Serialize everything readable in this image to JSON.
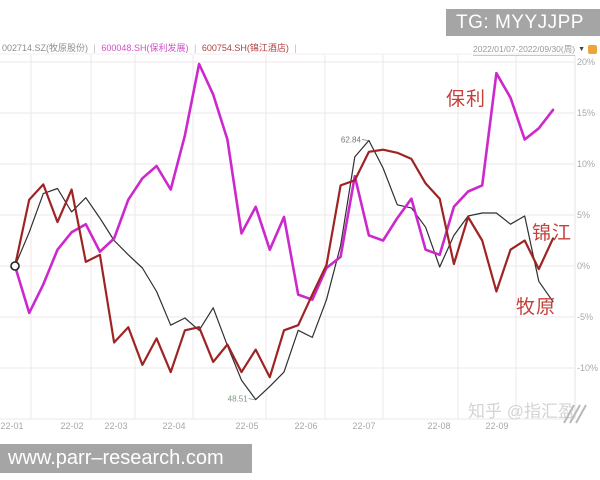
{
  "banners": {
    "tg": "TG: MYYJJPP",
    "website": "www.parr–research.com"
  },
  "legend": {
    "separator": "|",
    "items": [
      {
        "label": "002714.SZ(牧原股份)",
        "color": "#8d8d8d"
      },
      {
        "label": "600048.SH(保利发展)",
        "color": "#d24fc8"
      },
      {
        "label": "600754.SH(锦江酒店)",
        "color": "#b04040"
      }
    ]
  },
  "toolbar": {
    "date_range": "2022/01/07-2022/09/30(周)",
    "dropdown_icon": "▼"
  },
  "watermarks": {
    "zhihu": "知乎 @指汇盈"
  },
  "chart_data": {
    "type": "line",
    "title": "",
    "frequency": "weekly",
    "x_labels": [
      "22-01",
      "22-02",
      "22-03",
      "22-04",
      "22-05",
      "22-06",
      "22-07",
      "22-08",
      "22-09"
    ],
    "y_tick_labels": [
      "20%",
      "15%",
      "10%",
      "5%",
      "0%",
      "-5%",
      "-10%"
    ],
    "y_range": [
      -15,
      21
    ],
    "grid": true,
    "legend_position": "top-left",
    "series": [
      {
        "name": "600048.SH(保利发展)",
        "short": "保利",
        "color": "#cc29cc",
        "width": 2.6,
        "values": [
          0,
          -4.6,
          -1.8,
          1.6,
          3.3,
          4.1,
          1.4,
          2.7,
          6.5,
          8.6,
          9.8,
          7.5,
          12.8,
          19.8,
          16.8,
          12.4,
          3.2,
          5.8,
          1.6,
          4.8,
          -2.8,
          -3.3,
          -0.2,
          0.9,
          8.8,
          3.0,
          2.5,
          4.7,
          6.6,
          1.6,
          1.1,
          5.8,
          7.3,
          7.9,
          18.9,
          16.5,
          12.4,
          13.5,
          15.3
        ]
      },
      {
        "name": "002714.SZ(牧原股份)",
        "short": "牧原",
        "color": "#9e2424",
        "width": 2.2,
        "values": [
          0,
          6.5,
          8.0,
          4.3,
          7.5,
          0.4,
          1.1,
          -7.5,
          -6.0,
          -9.7,
          -7.1,
          -10.4,
          -6.3,
          -6.0,
          -9.4,
          -7.7,
          -10.4,
          -8.2,
          -10.9,
          -6.3,
          -5.8,
          -2.8,
          0.1,
          7.9,
          8.4,
          11.2,
          11.4,
          11.1,
          10.5,
          8.1,
          6.6,
          0.2,
          4.8,
          2.5,
          -2.5,
          1.6,
          2.5,
          -0.3,
          2.7
        ]
      },
      {
        "name": "600754.SH(锦江酒店)",
        "short": "锦江",
        "color": "#2f2f2f",
        "width": 1.2,
        "values": [
          0,
          3.3,
          7.1,
          7.6,
          5.3,
          6.7,
          4.7,
          2.5,
          1.1,
          -0.2,
          -2.5,
          -5.8,
          -5.1,
          -6.3,
          -4.1,
          -7.8,
          -11.2,
          -13.1,
          -11.8,
          -10.4,
          -6.3,
          -7.0,
          -3.3,
          2.0,
          10.7,
          12.3,
          9.6,
          6.0,
          5.7,
          3.8,
          -0.1,
          3.0,
          4.9,
          5.2,
          5.2,
          4.1,
          4.9,
          -1.5,
          -3.5
        ]
      }
    ],
    "annotations": [
      {
        "text": "62.84",
        "series": 2,
        "point": 25,
        "color": "#777777"
      },
      {
        "text": "48.51",
        "series": 2,
        "point": 17,
        "color": "#7d9a7d"
      }
    ]
  }
}
